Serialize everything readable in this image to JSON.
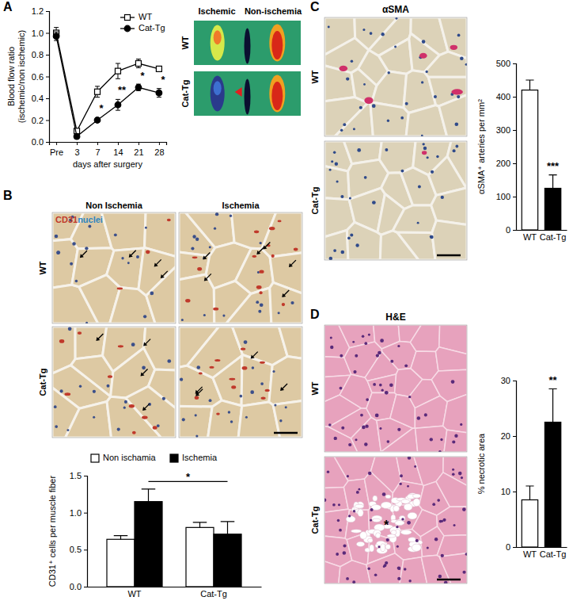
{
  "chart_data": [
    {
      "type": "line",
      "categories": [
        "Pre",
        "3",
        "7",
        "14",
        "21",
        "28"
      ],
      "x_label": "days after surgery",
      "y_label": [
        "Blood flow ratio",
        "(ischemic/non ischemic)"
      ],
      "ylim": [
        0,
        1.2
      ],
      "yticks": [
        {
          "value": 0,
          "label": "0.0"
        },
        0.2,
        0.4,
        0.6,
        0.8,
        {
          "value": 1,
          "label": "1.0"
        },
        1.2
      ],
      "legend": "top-right",
      "series": [
        {
          "name": "WT",
          "color": "#000000",
          "marker": "square-open",
          "values": [
            1.0,
            0.1,
            0.46,
            0.65,
            0.72,
            0.67
          ],
          "error": [
            0.05,
            0.02,
            0.05,
            0.07,
            0.04,
            0.02
          ]
        },
        {
          "name": "Cat-Tg",
          "color": "#000000",
          "marker": "circle",
          "values": [
            0.97,
            0.05,
            0.2,
            0.34,
            0.5,
            0.45
          ],
          "error": [
            0.04,
            0.02,
            0.02,
            0.05,
            0.03,
            0.04
          ]
        }
      ],
      "annotations": [
        {
          "text": "*",
          "x": "7",
          "y": 0.3
        },
        {
          "text": "**",
          "x": "14",
          "y": 0.47
        },
        {
          "text": "*",
          "x": "21",
          "y": 0.6
        },
        {
          "text": "*",
          "x": "28",
          "y": 0.56
        }
      ]
    },
    {
      "type": "bar",
      "categories": [
        "WT",
        "Cat-Tg"
      ],
      "y_label": "CD31⁺ cells per muscle fiber",
      "ylim": [
        0,
        1.5
      ],
      "yticks": [
        {
          "value": 0,
          "label": "0.0"
        },
        0.5,
        {
          "value": 1,
          "label": "1.0"
        },
        1.5
      ],
      "legend": "top",
      "series": [
        {
          "name": "Non ischamia",
          "color": "#ffffff",
          "values": [
            0.64,
            0.8
          ],
          "error": [
            0.05,
            0.07
          ]
        },
        {
          "name": "Ischemia",
          "color": "#000000",
          "values": [
            1.15,
            0.71
          ],
          "error": [
            0.17,
            0.17
          ]
        }
      ],
      "annotations": [
        {
          "text": "*",
          "y": 1.42
        }
      ]
    },
    {
      "type": "bar",
      "categories": [
        "WT",
        "Cat-Tg"
      ],
      "y_label": "αSMA⁺ arteries per mm²",
      "ylim": [
        0,
        500
      ],
      "yticks": [
        0,
        100,
        200,
        300,
        400,
        500
      ],
      "values": [
        420,
        125
      ],
      "error": [
        30,
        40
      ],
      "colors": [
        "#ffffff",
        "#000000"
      ],
      "annotations": [
        {
          "text": "***",
          "x": "Cat-Tg",
          "y": 180
        }
      ]
    },
    {
      "type": "bar",
      "categories": [
        "WT",
        "Cat-Tg"
      ],
      "y_label": "% necrotic area",
      "ylim": [
        0,
        30
      ],
      "yticks": [
        0,
        10,
        20,
        30
      ],
      "values": [
        8.5,
        22.5
      ],
      "error": [
        2.5,
        6
      ],
      "colors": [
        "#ffffff",
        "#000000"
      ],
      "annotations": [
        {
          "text": "**",
          "x": "Cat-Tg",
          "y": 29.5
        }
      ]
    }
  ],
  "panels": [
    {
      "label": "A",
      "image_columns": [
        "Ischemic",
        "Non-ischemia"
      ],
      "image_rows": [
        "WT",
        "Cat-Tg"
      ]
    },
    {
      "label": "B",
      "image_columns": [
        "Non Ischemia",
        "Ischemia"
      ],
      "image_rows": [
        "WT",
        "Cat-Tg"
      ],
      "stain": [
        "CD31",
        "nuclei"
      ]
    },
    {
      "label": "C",
      "image_title": "αSMA",
      "image_rows": [
        "WT",
        "Cat-Tg"
      ]
    },
    {
      "label": "D",
      "image_title": "H&E",
      "image_rows": [
        "WT",
        "Cat-Tg"
      ],
      "image_annotation": "*"
    }
  ]
}
